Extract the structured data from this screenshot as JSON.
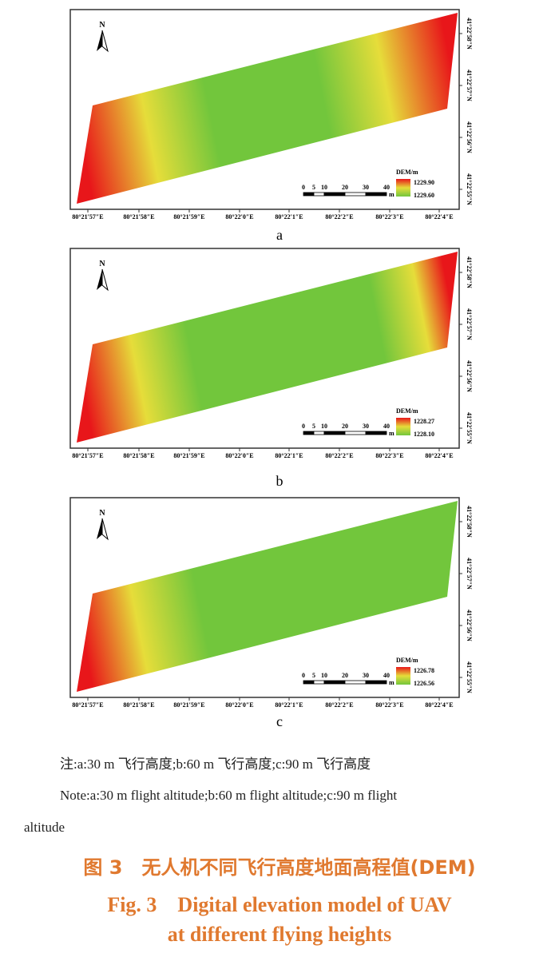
{
  "panels": [
    {
      "label": "a",
      "legend_title": "DEM/m",
      "legend_max": "1229.90",
      "legend_min": "1229.60",
      "colors": {
        "high": "#e8161a",
        "mid": "#e6dd3a",
        "low": "#72c63c"
      }
    },
    {
      "label": "b",
      "legend_title": "DEM/m",
      "legend_max": "1228.27",
      "legend_min": "1228.10",
      "colors": {
        "high": "#e8161a",
        "mid": "#e6dd3a",
        "low": "#72c63c"
      }
    },
    {
      "label": "c",
      "legend_title": "DEM/m",
      "legend_max": "1226.78",
      "legend_min": "1226.56",
      "colors": {
        "high": "#e8161a",
        "mid": "#e6dd3a",
        "low": "#72c63c"
      }
    }
  ],
  "north_label": "N",
  "scale_labels": [
    "0",
    "5",
    "10",
    "20",
    "30",
    "40"
  ],
  "scale_unit": "m",
  "lon_ticks": [
    "80°21′57″E",
    "80°21′58″E",
    "80°21′59″E",
    "80°22′0″E",
    "80°22′1″E",
    "80°22′2″E",
    "80°22′3″E",
    "80°22′4″E"
  ],
  "lat_ticks": [
    "41°22′58″N",
    "41°22′57″N",
    "41°22′56″N",
    "41°22′55″N"
  ],
  "note_cn": "注:a:30 m 飞行高度;b:60 m 飞行高度;c:90 m 飞行高度",
  "note_en_1": "Note:a:30 m flight altitude;b:60 m flight altitude;c:90 m flight",
  "note_en_2": "altitude",
  "caption_cn": "图 3　无人机不同飞行高度地面高程值(DEM)",
  "caption_en_1": "Fig. 3　Digital elevation model of UAV",
  "caption_en_2": "at different flying heights"
}
